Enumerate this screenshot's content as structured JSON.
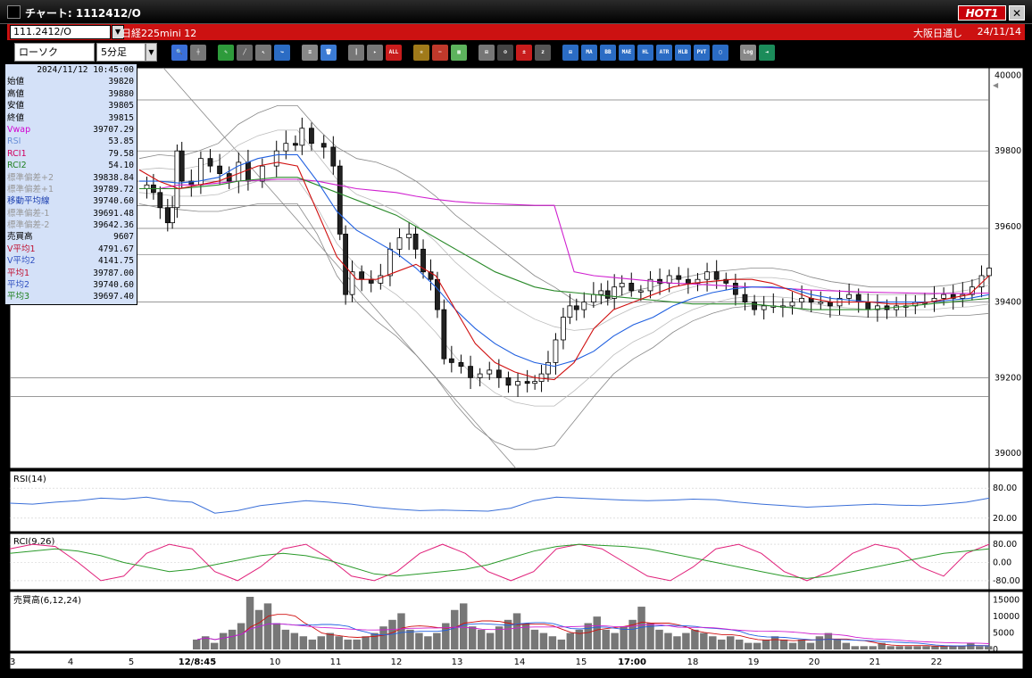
{
  "window": {
    "title": "チャート: 1112412/O",
    "hot_label": "HOT1",
    "close_label": "✕"
  },
  "symbol_bar": {
    "code": "111.2412/O",
    "name": "日経225mini 12",
    "market": "大阪日通し",
    "date": "24/11/14"
  },
  "toolbar": {
    "chart_type": "ローソク",
    "interval": "5分足",
    "buttons": [
      {
        "name": "zoom-button",
        "label": "🔍",
        "color": "#3a6fd8"
      },
      {
        "name": "crosshair-button",
        "label": "┼",
        "color": "#777"
      },
      {
        "name": "pencil-button",
        "label": "✎",
        "color": "#2e9b3b"
      },
      {
        "name": "line-tool-button",
        "label": "╱",
        "color": "#666"
      },
      {
        "name": "cursor-button",
        "label": "↖",
        "color": "#777"
      },
      {
        "name": "redo-button",
        "label": "↪",
        "color": "#2b6cc4"
      },
      {
        "name": "note-button",
        "label": "≡",
        "color": "#888"
      },
      {
        "name": "trash-button",
        "label": "🗑",
        "color": "#3b7bd4"
      },
      {
        "name": "candle-bar-button",
        "label": "┃",
        "color": "#777"
      },
      {
        "name": "candle-right-button",
        "label": "▸",
        "color": "#777"
      },
      {
        "name": "all-button",
        "label": "ALL",
        "color": "#c91c1c"
      },
      {
        "name": "settings-button",
        "label": "✲",
        "color": "#a07a1a"
      },
      {
        "name": "tools-button",
        "label": "✂",
        "color": "#c0392b"
      },
      {
        "name": "color-button",
        "label": "▦",
        "color": "#5db35d"
      },
      {
        "name": "indicator-add-button",
        "label": "⊞",
        "color": "#777"
      },
      {
        "name": "search-chart-button",
        "label": "⊙",
        "color": "#444"
      },
      {
        "name": "compare-button",
        "label": "±",
        "color": "#c91c1c"
      },
      {
        "name": "blank-button",
        "label": "z",
        "color": "#555"
      },
      {
        "name": "ma-chart-button",
        "label": "⊞",
        "color": "#2b6cc4"
      },
      {
        "name": "ma-button",
        "label": "MA",
        "color": "#2b6cc4"
      },
      {
        "name": "bb-button",
        "label": "BB",
        "color": "#2b6cc4"
      },
      {
        "name": "mae-button",
        "label": "MAE",
        "color": "#2b6cc4"
      },
      {
        "name": "hl-button",
        "label": "HL",
        "color": "#2b6cc4"
      },
      {
        "name": "atr-button",
        "label": "ATR",
        "color": "#2b6cc4"
      },
      {
        "name": "hlb-button",
        "label": "HLB",
        "color": "#2b6cc4"
      },
      {
        "name": "pvt-button",
        "label": "PVT",
        "color": "#2b6cc4"
      },
      {
        "name": "window-button",
        "label": "▢",
        "color": "#2b6cc4"
      },
      {
        "name": "log-button",
        "label": "Log",
        "color": "#888"
      },
      {
        "name": "export-button",
        "label": "⇥",
        "color": "#1b8c5a"
      }
    ]
  },
  "info": {
    "timestamp": "2024/11/12  10:45:00",
    "rows": [
      {
        "label": "始値",
        "value": "39820",
        "color": "#000"
      },
      {
        "label": "高値",
        "value": "39880",
        "color": "#000"
      },
      {
        "label": "安値",
        "value": "39805",
        "color": "#000"
      },
      {
        "label": "終値",
        "value": "39815",
        "color": "#000"
      },
      {
        "label": "Vwap",
        "value": "39707.29",
        "color": "#d100d1"
      },
      {
        "label": "RSI",
        "value": "53.85",
        "color": "#6a8fd8"
      },
      {
        "label": "RCI1",
        "value": "79.58",
        "color": "#d10060"
      },
      {
        "label": "RCI2",
        "value": "54.10",
        "color": "#208020"
      },
      {
        "label": "標準偏差+2",
        "value": "39838.84",
        "color": "#999"
      },
      {
        "label": "標準偏差+1",
        "value": "39789.72",
        "color": "#999"
      },
      {
        "label": "移動平均線",
        "value": "39740.60",
        "color": "#1a3eb0"
      },
      {
        "label": "標準偏差-1",
        "value": "39691.48",
        "color": "#999"
      },
      {
        "label": "標準偏差-2",
        "value": "39642.36",
        "color": "#999"
      },
      {
        "label": "売買高",
        "value": "9607",
        "color": "#000"
      },
      {
        "label": "V平均1",
        "value": "4791.67",
        "color": "#c01030"
      },
      {
        "label": "V平均2",
        "value": "4141.75",
        "color": "#3050c0"
      },
      {
        "label": "平均1",
        "value": "39787.00",
        "color": "#c01030"
      },
      {
        "label": "平均2",
        "value": "39740.60",
        "color": "#3050c0"
      },
      {
        "label": "平均3",
        "value": "39697.40",
        "color": "#208020"
      }
    ]
  },
  "main_axis": [
    "40000",
    "39800",
    "39600",
    "39400",
    "39200",
    "39000"
  ],
  "rsi_panel": {
    "label": "RSI(14)",
    "ticks": [
      "80.00",
      "20.00"
    ]
  },
  "rci_panel": {
    "label": "RCI(9,26)",
    "ticks": [
      "80.00",
      "0.00",
      "-80.00"
    ]
  },
  "vol_panel": {
    "label": "売買高(6,12,24)",
    "ticks": [
      "15000",
      "10000",
      "5000",
      "0"
    ]
  },
  "x_axis": [
    {
      "label": "3",
      "bold": false
    },
    {
      "label": "4",
      "bold": false
    },
    {
      "label": "5",
      "bold": false
    },
    {
      "label": "12/8:45",
      "bold": true
    },
    {
      "label": "10",
      "bold": false
    },
    {
      "label": "11",
      "bold": false
    },
    {
      "label": "12",
      "bold": false
    },
    {
      "label": "13",
      "bold": false
    },
    {
      "label": "14",
      "bold": false
    },
    {
      "label": "15",
      "bold": false
    },
    {
      "label": "17:00",
      "bold": true
    },
    {
      "label": "18",
      "bold": false
    },
    {
      "label": "19",
      "bold": false
    },
    {
      "label": "20",
      "bold": false
    },
    {
      "label": "21",
      "bold": false
    },
    {
      "label": "22",
      "bold": false
    }
  ],
  "colors": {
    "rsi": "#3a6fd8",
    "rci1": "#e0207a",
    "rci2": "#2a9a2a",
    "ma1": "#d01010",
    "ma2": "#2060e0",
    "ma3": "#2a8a2a",
    "vwap": "#d020d0",
    "band": "#888888",
    "trend": "#888888"
  },
  "chart_data": {
    "type": "line",
    "title": "",
    "y_ticks": [
      40000,
      39800,
      39600,
      39400,
      39200,
      39000
    ],
    "ylim": [
      38960,
      40020
    ],
    "price_path": [
      [
        0,
        39700
      ],
      [
        8,
        39710
      ],
      [
        15,
        39690
      ],
      [
        22,
        39650
      ],
      [
        30,
        39610
      ],
      [
        35,
        39650
      ],
      [
        40,
        39800
      ],
      [
        45,
        39720
      ],
      [
        55,
        39710
      ],
      [
        65,
        39780
      ],
      [
        75,
        39760
      ],
      [
        85,
        39740
      ],
      [
        95,
        39720
      ],
      [
        105,
        39770
      ],
      [
        115,
        39720
      ],
      [
        130,
        39760
      ],
      [
        145,
        39800
      ],
      [
        155,
        39820
      ],
      [
        165,
        39815
      ],
      [
        172,
        39860
      ],
      [
        182,
        39820
      ],
      [
        195,
        39810
      ],
      [
        205,
        39760
      ],
      [
        212,
        39580
      ],
      [
        218,
        39420
      ],
      [
        225,
        39480
      ],
      [
        235,
        39460
      ],
      [
        245,
        39450
      ],
      [
        255,
        39470
      ],
      [
        265,
        39540
      ],
      [
        275,
        39570
      ],
      [
        285,
        39580
      ],
      [
        292,
        39540
      ],
      [
        300,
        39480
      ],
      [
        308,
        39460
      ],
      [
        315,
        39380
      ],
      [
        322,
        39250
      ],
      [
        330,
        39240
      ],
      [
        340,
        39230
      ],
      [
        350,
        39200
      ],
      [
        360,
        39210
      ],
      [
        370,
        39220
      ],
      [
        380,
        39200
      ],
      [
        390,
        39180
      ],
      [
        400,
        39190
      ],
      [
        410,
        39185
      ],
      [
        418,
        39190
      ],
      [
        425,
        39210
      ],
      [
        432,
        39240
      ],
      [
        440,
        39300
      ],
      [
        448,
        39360
      ],
      [
        455,
        39390
      ],
      [
        462,
        39380
      ],
      [
        470,
        39400
      ],
      [
        480,
        39420
      ],
      [
        488,
        39430
      ],
      [
        495,
        39410
      ],
      [
        502,
        39440
      ],
      [
        510,
        39450
      ],
      [
        520,
        39430
      ],
      [
        530,
        39430
      ],
      [
        540,
        39460
      ],
      [
        550,
        39450
      ],
      [
        560,
        39470
      ],
      [
        570,
        39460
      ],
      [
        580,
        39450
      ],
      [
        590,
        39460
      ],
      [
        600,
        39480
      ],
      [
        610,
        39460
      ],
      [
        620,
        39450
      ],
      [
        630,
        39420
      ],
      [
        640,
        39400
      ],
      [
        650,
        39380
      ],
      [
        660,
        39390
      ],
      [
        670,
        39390
      ],
      [
        680,
        39390
      ],
      [
        690,
        39400
      ],
      [
        700,
        39410
      ],
      [
        710,
        39400
      ],
      [
        720,
        39400
      ],
      [
        730,
        39390
      ],
      [
        740,
        39410
      ],
      [
        750,
        39420
      ],
      [
        760,
        39400
      ],
      [
        770,
        39380
      ],
      [
        780,
        39390
      ],
      [
        790,
        39380
      ],
      [
        800,
        39390
      ],
      [
        810,
        39390
      ],
      [
        820,
        39400
      ],
      [
        830,
        39400
      ],
      [
        840,
        39410
      ],
      [
        850,
        39420
      ],
      [
        860,
        39410
      ],
      [
        870,
        39420
      ],
      [
        880,
        39440
      ],
      [
        890,
        39470
      ],
      [
        898,
        39490
      ]
    ],
    "series": [
      {
        "values": [
          39750,
          39720,
          39700,
          39710,
          39720,
          39740,
          39760,
          39770,
          39760,
          39640,
          39520,
          39460,
          39460,
          39480,
          39500,
          39470,
          39380,
          39290,
          39240,
          39215,
          39200,
          39195,
          39240,
          39330,
          39380,
          39400,
          39420,
          39440,
          39450,
          39455,
          39460,
          39460,
          39450,
          39430,
          39410,
          39400,
          39400,
          39400,
          39395,
          39395,
          39400,
          39410,
          39420,
          39470
        ]
      },
      {
        "values": [
          39720,
          39720,
          39715,
          39720,
          39730,
          39760,
          39780,
          39790,
          39790,
          39720,
          39640,
          39590,
          39560,
          39530,
          39490,
          39440,
          39380,
          39330,
          39290,
          39260,
          39240,
          39230,
          39245,
          39270,
          39310,
          39340,
          39360,
          39390,
          39410,
          39425,
          39435,
          39440,
          39440,
          39435,
          39420,
          39410,
          39405,
          39400,
          39400,
          39400,
          39400,
          39405,
          39410,
          39420
        ]
      },
      {
        "values": [
          39700,
          39700,
          39700,
          39705,
          39710,
          39720,
          39725,
          39730,
          39730,
          39710,
          39690,
          39670,
          39650,
          39630,
          39600,
          39570,
          39540,
          39510,
          39480,
          39460,
          39440,
          39430,
          39425,
          39420,
          39415,
          39410,
          39405,
          39400,
          39395,
          39395,
          39395,
          39395,
          39390,
          39385,
          39380,
          39380,
          39380,
          39380,
          39385,
          39390,
          39395,
          39400,
          39405,
          39410
        ]
      },
      {
        "values": [
          39700,
          39700,
          39710,
          39710,
          39715,
          39720,
          39722,
          39725,
          39725,
          39720,
          39710,
          39700,
          39695,
          39690,
          39680,
          39672,
          39666,
          39662,
          39660,
          39658,
          39656,
          39656,
          39480,
          39470,
          39465,
          39460,
          39455,
          39450,
          39448,
          39445,
          39442,
          39440,
          39438,
          39435,
          39432,
          39430,
          39428,
          39426,
          39425,
          39424,
          39423,
          39423,
          39423,
          39424
        ]
      }
    ],
    "rsi_values": [
      50,
      48,
      52,
      55,
      60,
      58,
      62,
      55,
      52,
      30,
      35,
      45,
      50,
      55,
      52,
      48,
      42,
      38,
      35,
      36,
      35,
      34,
      40,
      55,
      62,
      60,
      58,
      56,
      55,
      56,
      58,
      57,
      52,
      48,
      45,
      42,
      44,
      46,
      48,
      46,
      45,
      48,
      52,
      60
    ],
    "rci1_values": [
      60,
      80,
      70,
      0,
      -80,
      -60,
      40,
      80,
      60,
      -40,
      -80,
      -20,
      60,
      80,
      20,
      -60,
      -80,
      -40,
      40,
      80,
      40,
      -40,
      -80,
      -40,
      60,
      80,
      60,
      0,
      -60,
      -80,
      -20,
      60,
      80,
      40,
      -40,
      -80,
      -40,
      40,
      80,
      60,
      -20,
      -60,
      40,
      80
    ],
    "rci2_values": [
      40,
      50,
      60,
      50,
      30,
      0,
      -20,
      -40,
      -30,
      -10,
      10,
      30,
      40,
      30,
      10,
      -20,
      -50,
      -60,
      -50,
      -40,
      -30,
      -10,
      20,
      50,
      70,
      80,
      75,
      70,
      60,
      40,
      20,
      0,
      -20,
      -40,
      -60,
      -70,
      -60,
      -40,
      -20,
      0,
      20,
      40,
      50,
      60
    ],
    "volume_values": [
      3,
      4,
      2,
      5,
      6,
      8,
      16,
      12,
      14,
      8,
      6,
      5,
      4,
      3,
      4,
      5,
      4,
      3,
      3,
      4,
      5,
      7,
      9,
      11,
      6,
      5,
      4,
      5,
      8,
      12,
      14,
      7,
      6,
      5,
      7,
      9,
      11,
      8,
      6,
      5,
      4,
      3,
      5,
      6,
      8,
      10,
      6,
      5,
      7,
      9,
      13,
      8,
      6,
      5,
      4,
      5,
      6,
      5,
      4,
      3,
      4,
      3,
      2,
      2,
      3,
      4,
      3,
      2,
      3,
      2,
      4,
      5,
      3,
      2,
      1,
      1,
      1,
      2,
      1,
      1,
      1,
      1,
      1,
      1,
      1,
      1,
      1,
      2,
      1,
      1
    ]
  }
}
